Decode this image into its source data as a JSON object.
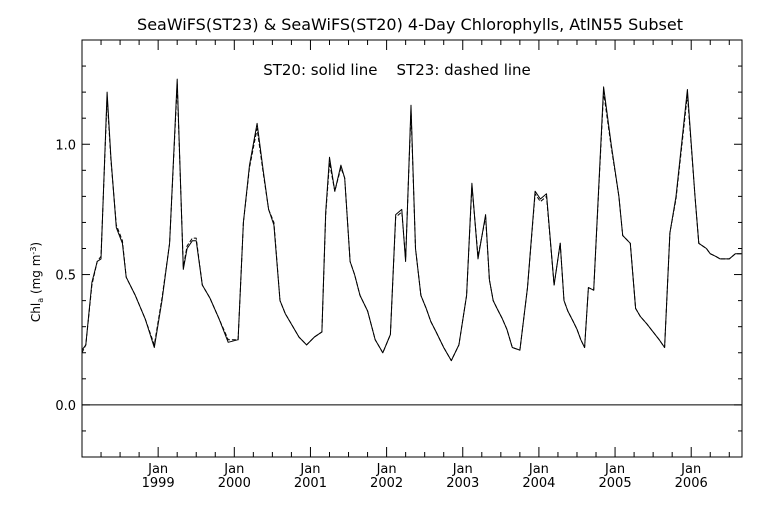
{
  "chart_data": {
    "type": "line",
    "title": "SeaWiFS(ST23) & SeaWiFS(ST20) 4-Day Chlorophylls, AtlN55 Subset",
    "annotation": "ST20: solid line    ST23: dashed line",
    "ylabel_main": "Chl",
    "ylabel_sub": "a",
    "ylabel_unit_pre": " (mg m",
    "ylabel_unit_sup": "-3",
    "ylabel_unit_post": ")",
    "ylim": [
      -0.2,
      1.4
    ],
    "yticks": [
      "0.0",
      "0.5",
      "1.0"
    ],
    "ytick_values": [
      0.0,
      0.5,
      1.0
    ],
    "xlim": [
      1998.0,
      2006.667
    ],
    "x_month_labels": [
      "Jan",
      "Jan",
      "Jan",
      "Jan",
      "Jan",
      "Jan",
      "Jan",
      "Jan"
    ],
    "x_year_labels": [
      "1999",
      "2000",
      "2001",
      "2002",
      "2003",
      "2004",
      "2005",
      "2006"
    ],
    "x_year_values": [
      1999,
      2000,
      2001,
      2002,
      2003,
      2004,
      2005,
      2006
    ],
    "zero_line": 0.0,
    "grid": false,
    "line_color": "#000000",
    "series": [
      {
        "x": [
          1998.0,
          1998.05,
          1998.13,
          1998.2,
          1998.25,
          1998.33,
          1998.38,
          1998.45,
          1998.53,
          1998.58,
          1998.7,
          1998.83,
          1998.95,
          1999.05,
          1999.15,
          1999.25,
          1999.33,
          1999.38,
          1999.45,
          1999.5,
          1999.58,
          1999.68,
          1999.8,
          1999.92,
          2000.05,
          2000.12,
          2000.2,
          2000.3,
          2000.38,
          2000.45,
          2000.52,
          2000.6,
          2000.67,
          2000.75,
          2000.85,
          2000.95,
          2001.05,
          2001.15,
          2001.2,
          2001.25,
          2001.32,
          2001.4,
          2001.45,
          2001.52,
          2001.58,
          2001.65,
          2001.75,
          2001.85,
          2001.95,
          2002.05,
          2002.12,
          2002.2,
          2002.25,
          2002.32,
          2002.38,
          2002.45,
          2002.52,
          2002.58,
          2002.65,
          2002.75,
          2002.85,
          2002.95,
          2003.05,
          2003.12,
          2003.2,
          2003.3,
          2003.35,
          2003.4,
          2003.45,
          2003.52,
          2003.58,
          2003.65,
          2003.75,
          2003.85,
          2003.95,
          2004.02,
          2004.1,
          2004.2,
          2004.28,
          2004.33,
          2004.38,
          2004.45,
          2004.5,
          2004.55,
          2004.6,
          2004.65,
          2004.72,
          2004.85,
          2004.95,
          2005.05,
          2005.1,
          2005.2,
          2005.27,
          2005.33,
          2005.42,
          2005.5,
          2005.58,
          2005.65,
          2005.72,
          2005.8,
          2005.95,
          2006.05,
          2006.1,
          2006.2,
          2006.25,
          2006.32,
          2006.38,
          2006.45,
          2006.5,
          2006.58,
          2006.667
        ],
        "y": [
          0.21,
          0.23,
          0.47,
          0.55,
          0.56,
          1.2,
          0.95,
          0.68,
          0.62,
          0.49,
          0.42,
          0.33,
          0.22,
          0.4,
          0.62,
          1.25,
          0.52,
          0.6,
          0.63,
          0.63,
          0.46,
          0.41,
          0.33,
          0.24,
          0.25,
          0.7,
          0.92,
          1.08,
          0.9,
          0.75,
          0.69,
          0.4,
          0.35,
          0.31,
          0.26,
          0.23,
          0.26,
          0.28,
          0.74,
          0.95,
          0.82,
          0.92,
          0.87,
          0.55,
          0.5,
          0.42,
          0.36,
          0.25,
          0.2,
          0.27,
          0.73,
          0.75,
          0.55,
          1.15,
          0.6,
          0.42,
          0.37,
          0.32,
          0.28,
          0.22,
          0.17,
          0.23,
          0.42,
          0.85,
          0.56,
          0.73,
          0.48,
          0.4,
          0.37,
          0.33,
          0.29,
          0.22,
          0.21,
          0.45,
          0.82,
          0.79,
          0.81,
          0.46,
          0.62,
          0.4,
          0.36,
          0.32,
          0.29,
          0.25,
          0.22,
          0.45,
          0.44,
          1.22,
          1.0,
          0.8,
          0.65,
          0.62,
          0.37,
          0.34,
          0.31,
          0.28,
          0.25,
          0.22,
          0.66,
          0.8,
          1.21,
          0.8,
          0.62,
          0.6,
          0.58,
          0.57,
          0.56,
          0.56,
          0.56,
          0.58,
          0.58
        ]
      },
      {
        "x": [
          1998.0,
          1998.05,
          1998.13,
          1998.2,
          1998.25,
          1998.33,
          1998.38,
          1998.45,
          1998.53,
          1998.58,
          1998.7,
          1998.83,
          1998.95,
          1999.05,
          1999.15,
          1999.25,
          1999.33,
          1999.38,
          1999.45,
          1999.5,
          1999.58,
          1999.68,
          1999.8,
          1999.92,
          2000.05,
          2000.12,
          2000.2,
          2000.3,
          2000.38,
          2000.45,
          2000.52,
          2000.6,
          2000.67,
          2000.75,
          2000.85,
          2000.95,
          2001.05,
          2001.15,
          2001.2,
          2001.25,
          2001.32,
          2001.4,
          2001.45,
          2001.52,
          2001.58,
          2001.65,
          2001.75,
          2001.85,
          2001.95,
          2002.05,
          2002.12,
          2002.2,
          2002.25,
          2002.32,
          2002.38,
          2002.45,
          2002.52,
          2002.58,
          2002.65,
          2002.75,
          2002.85,
          2002.95,
          2003.05,
          2003.12,
          2003.2,
          2003.3,
          2003.35,
          2003.4,
          2003.45,
          2003.52,
          2003.58,
          2003.65,
          2003.75,
          2003.85,
          2003.95,
          2004.02,
          2004.1,
          2004.2,
          2004.28,
          2004.33,
          2004.38,
          2004.45,
          2004.5,
          2004.55,
          2004.6,
          2004.65,
          2004.72,
          2004.85,
          2004.95,
          2005.05,
          2005.1,
          2005.2,
          2005.27,
          2005.33,
          2005.42,
          2005.5,
          2005.58,
          2005.65,
          2005.72,
          2005.8,
          2005.95,
          2006.05,
          2006.1,
          2006.2,
          2006.25,
          2006.32,
          2006.38,
          2006.45,
          2006.5,
          2006.58,
          2006.667
        ],
        "y": [
          0.2,
          0.23,
          0.46,
          0.55,
          0.57,
          1.18,
          0.94,
          0.69,
          0.63,
          0.49,
          0.42,
          0.33,
          0.23,
          0.41,
          0.62,
          1.23,
          0.53,
          0.61,
          0.64,
          0.64,
          0.46,
          0.41,
          0.33,
          0.25,
          0.25,
          0.7,
          0.91,
          1.06,
          0.89,
          0.75,
          0.7,
          0.4,
          0.35,
          0.31,
          0.26,
          0.23,
          0.26,
          0.28,
          0.73,
          0.93,
          0.82,
          0.91,
          0.87,
          0.55,
          0.5,
          0.42,
          0.36,
          0.25,
          0.2,
          0.27,
          0.72,
          0.74,
          0.56,
          1.13,
          0.6,
          0.42,
          0.37,
          0.32,
          0.28,
          0.22,
          0.17,
          0.23,
          0.42,
          0.84,
          0.57,
          0.72,
          0.48,
          0.4,
          0.37,
          0.33,
          0.29,
          0.22,
          0.21,
          0.45,
          0.81,
          0.78,
          0.8,
          0.46,
          0.62,
          0.4,
          0.36,
          0.32,
          0.29,
          0.25,
          0.22,
          0.45,
          0.44,
          1.2,
          0.99,
          0.8,
          0.65,
          0.62,
          0.37,
          0.34,
          0.31,
          0.28,
          0.25,
          0.22,
          0.66,
          0.79,
          1.19,
          0.8,
          0.62,
          0.6,
          0.58,
          0.57,
          0.56,
          0.56,
          0.56,
          0.58,
          0.58
        ]
      }
    ]
  }
}
